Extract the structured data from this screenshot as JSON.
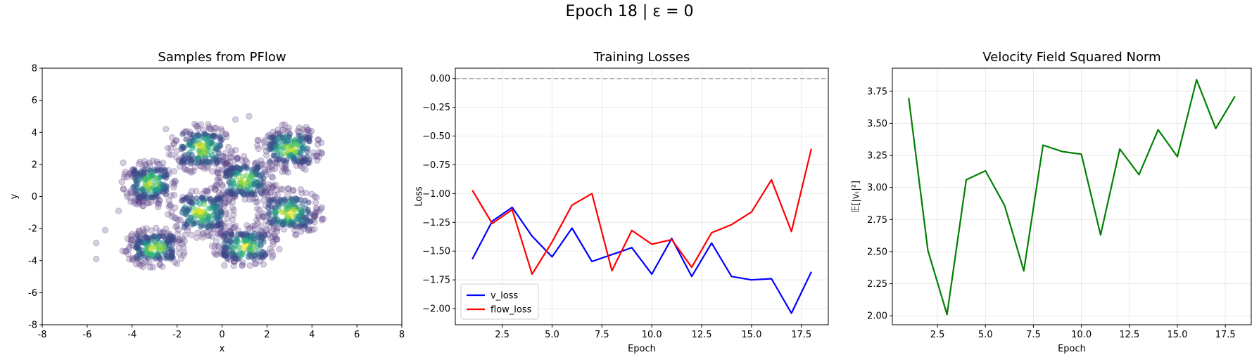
{
  "figure": {
    "suptitle": "Epoch 18 | ε = 0"
  },
  "colors": {
    "v_loss": "#0000ff",
    "flow_loss": "#ff0000",
    "vnorm": "#008000",
    "zero_line": "#aaaaaa",
    "grid": "#e8e8e8"
  },
  "chart_data": [
    {
      "type": "scatter",
      "title": "Samples from PFlow",
      "xlabel": "x",
      "ylabel": "y",
      "xlim": [
        -8,
        8
      ],
      "ylim": [
        -8,
        8
      ],
      "xticks": [
        -8,
        -6,
        -4,
        -2,
        0,
        2,
        4,
        6,
        8
      ],
      "yticks": [
        -8,
        -6,
        -4,
        -2,
        0,
        2,
        4,
        6,
        8
      ],
      "grid": false,
      "colormap": "viridis",
      "clusters": [
        {
          "center": [
            -3.2,
            0.8
          ],
          "size": [
            1.6,
            1.9
          ]
        },
        {
          "center": [
            -0.9,
            3.0
          ],
          "size": [
            1.9,
            2.0
          ]
        },
        {
          "center": [
            1.0,
            1.0
          ],
          "size": [
            1.8,
            1.9
          ]
        },
        {
          "center": [
            3.0,
            3.0
          ],
          "size": [
            1.9,
            1.9
          ]
        },
        {
          "center": [
            -0.9,
            -1.0
          ],
          "size": [
            1.9,
            2.0
          ]
        },
        {
          "center": [
            3.0,
            -1.0
          ],
          "size": [
            2.0,
            1.9
          ]
        },
        {
          "center": [
            -3.0,
            -3.2
          ],
          "size": [
            1.8,
            1.6
          ]
        },
        {
          "center": [
            1.0,
            -3.1
          ],
          "size": [
            2.0,
            1.7
          ]
        }
      ]
    },
    {
      "type": "line",
      "title": "Training Losses",
      "xlabel": "Epoch",
      "ylabel": "Loss",
      "xlim": [
        0.15,
        18.85
      ],
      "ylim": [
        -2.14,
        0.09
      ],
      "xticks": [
        2.5,
        5.0,
        7.5,
        10.0,
        12.5,
        15.0,
        17.5
      ],
      "xtick_labels": [
        "2.5",
        "5.0",
        "7.5",
        "10.0",
        "12.5",
        "15.0",
        "17.5"
      ],
      "yticks": [
        0.0,
        -0.25,
        -0.5,
        -0.75,
        -1.0,
        -1.25,
        -1.5,
        -1.75,
        -2.0
      ],
      "ytick_labels": [
        "0.00",
        "−0.25",
        "−0.50",
        "−0.75",
        "−1.00",
        "−1.25",
        "−1.50",
        "−1.75",
        "−2.00"
      ],
      "grid": true,
      "hline": 0,
      "legend": "lower-left",
      "x": [
        1,
        2,
        3,
        4,
        5,
        6,
        7,
        8,
        9,
        10,
        11,
        12,
        13,
        14,
        15,
        16,
        17,
        18
      ],
      "series": [
        {
          "name": "v_loss",
          "values": [
            -1.57,
            -1.24,
            -1.12,
            -1.37,
            -1.55,
            -1.3,
            -1.59,
            -1.53,
            -1.47,
            -1.7,
            -1.39,
            -1.72,
            -1.43,
            -1.72,
            -1.75,
            -1.74,
            -2.04,
            -1.68
          ]
        },
        {
          "name": "flow_loss",
          "values": [
            -0.97,
            -1.26,
            -1.14,
            -1.7,
            -1.42,
            -1.1,
            -1.0,
            -1.67,
            -1.32,
            -1.44,
            -1.4,
            -1.64,
            -1.34,
            -1.27,
            -1.16,
            -0.88,
            -1.33,
            -0.61
          ]
        }
      ]
    },
    {
      "type": "line",
      "title": "Velocity Field Squared Norm",
      "xlabel": "Epoch",
      "ylabel": "𝔼[|vₜ|²]",
      "xlim": [
        0.15,
        18.85
      ],
      "ylim": [
        1.93,
        3.93
      ],
      "xticks": [
        2.5,
        5.0,
        7.5,
        10.0,
        12.5,
        15.0,
        17.5
      ],
      "xtick_labels": [
        "2.5",
        "5.0",
        "7.5",
        "10.0",
        "12.5",
        "15.0",
        "17.5"
      ],
      "yticks": [
        2.0,
        2.25,
        2.5,
        2.75,
        3.0,
        3.25,
        3.5,
        3.75
      ],
      "ytick_labels": [
        "2.00",
        "2.25",
        "2.50",
        "2.75",
        "3.00",
        "3.25",
        "3.50",
        "3.75"
      ],
      "grid": true,
      "x": [
        1,
        2,
        3,
        4,
        5,
        6,
        7,
        8,
        9,
        10,
        11,
        12,
        13,
        14,
        15,
        16,
        17,
        18
      ],
      "series": [
        {
          "values": [
            3.7,
            2.51,
            2.01,
            3.06,
            3.13,
            2.86,
            2.35,
            3.33,
            3.28,
            3.26,
            2.63,
            3.3,
            3.1,
            3.45,
            3.24,
            3.84,
            3.46,
            3.71
          ]
        }
      ]
    }
  ]
}
